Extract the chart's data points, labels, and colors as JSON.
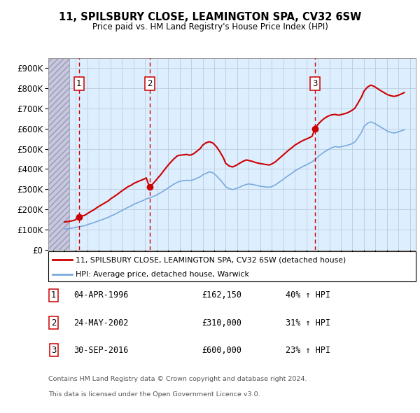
{
  "title": "11, SPILSBURY CLOSE, LEAMINGTON SPA, CV32 6SW",
  "subtitle": "Price paid vs. HM Land Registry's House Price Index (HPI)",
  "ylim": [
    0,
    950000
  ],
  "yticks": [
    0,
    100000,
    200000,
    300000,
    400000,
    500000,
    600000,
    700000,
    800000,
    900000
  ],
  "ytick_labels": [
    "£0",
    "£100K",
    "£200K",
    "£300K",
    "£400K",
    "£500K",
    "£600K",
    "£700K",
    "£800K",
    "£900K"
  ],
  "xlim_start": 1993.6,
  "xlim_end": 2025.5,
  "hatch_end_year": 1995.4,
  "sales": [
    {
      "year": 1996.25,
      "price": 162150,
      "label": "1"
    },
    {
      "year": 2002.39,
      "price": 310000,
      "label": "2"
    },
    {
      "year": 2016.75,
      "price": 600000,
      "label": "3"
    }
  ],
  "legend_line1": "11, SPILSBURY CLOSE, LEAMINGTON SPA, CV32 6SW (detached house)",
  "legend_line2": "HPI: Average price, detached house, Warwick",
  "table_rows": [
    {
      "num": "1",
      "date": "04-APR-1996",
      "price": "£162,150",
      "change": "40% ↑ HPI"
    },
    {
      "num": "2",
      "date": "24-MAY-2002",
      "price": "£310,000",
      "change": "31% ↑ HPI"
    },
    {
      "num": "3",
      "date": "30-SEP-2016",
      "price": "£600,000",
      "change": "23% ↑ HPI"
    }
  ],
  "footer1": "Contains HM Land Registry data © Crown copyright and database right 2024.",
  "footer2": "This data is licensed under the Open Government Licence v3.0.",
  "red_color": "#cc0000",
  "blue_color": "#7aaadd",
  "bg_color": "#ddeeff",
  "grid_color": "#bbccdd",
  "red_line_data_x": [
    1995.0,
    1995.3,
    1995.6,
    1995.9,
    1996.0,
    1996.25,
    1996.5,
    1996.8,
    1997.0,
    1997.3,
    1997.6,
    1997.9,
    1998.2,
    1998.5,
    1998.8,
    1999.0,
    1999.3,
    1999.6,
    1999.9,
    2000.2,
    2000.5,
    2000.8,
    2001.0,
    2001.3,
    2001.6,
    2001.9,
    2002.1,
    2002.39,
    2002.7,
    2003.0,
    2003.3,
    2003.6,
    2003.9,
    2004.2,
    2004.5,
    2004.8,
    2005.0,
    2005.3,
    2005.6,
    2005.9,
    2006.2,
    2006.5,
    2006.8,
    2007.0,
    2007.3,
    2007.6,
    2007.9,
    2008.2,
    2008.5,
    2008.8,
    2009.0,
    2009.3,
    2009.6,
    2009.9,
    2010.2,
    2010.5,
    2010.8,
    2011.0,
    2011.3,
    2011.6,
    2011.9,
    2012.2,
    2012.5,
    2012.8,
    2013.0,
    2013.3,
    2013.6,
    2013.9,
    2014.2,
    2014.5,
    2014.8,
    2015.0,
    2015.3,
    2015.6,
    2015.9,
    2016.2,
    2016.5,
    2016.75,
    2017.0,
    2017.3,
    2017.6,
    2017.9,
    2018.2,
    2018.5,
    2018.8,
    2019.0,
    2019.3,
    2019.6,
    2019.9,
    2020.2,
    2020.5,
    2020.8,
    2021.0,
    2021.3,
    2021.6,
    2021.9,
    2022.2,
    2022.5,
    2022.8,
    2023.0,
    2023.3,
    2023.6,
    2023.9,
    2024.2,
    2024.5
  ],
  "red_line_data_y": [
    138000,
    140000,
    143000,
    147000,
    152000,
    162150,
    167000,
    172000,
    180000,
    190000,
    200000,
    212000,
    222000,
    232000,
    242000,
    252000,
    263000,
    275000,
    288000,
    300000,
    312000,
    320000,
    328000,
    336000,
    343000,
    350000,
    356000,
    310000,
    328000,
    348000,
    368000,
    390000,
    412000,
    432000,
    450000,
    465000,
    468000,
    470000,
    472000,
    468000,
    475000,
    488000,
    502000,
    518000,
    530000,
    535000,
    528000,
    510000,
    485000,
    455000,
    428000,
    415000,
    410000,
    418000,
    428000,
    438000,
    445000,
    442000,
    438000,
    432000,
    428000,
    425000,
    422000,
    420000,
    425000,
    435000,
    450000,
    465000,
    480000,
    495000,
    508000,
    518000,
    528000,
    538000,
    546000,
    553000,
    562000,
    600000,
    620000,
    638000,
    652000,
    662000,
    668000,
    670000,
    666000,
    669000,
    673000,
    679000,
    688000,
    700000,
    728000,
    758000,
    785000,
    805000,
    815000,
    808000,
    797000,
    786000,
    776000,
    769000,
    763000,
    759000,
    763000,
    770000,
    778000
  ],
  "blue_line_data_x": [
    1995.0,
    1995.3,
    1995.6,
    1995.9,
    1996.0,
    1996.25,
    1996.5,
    1996.8,
    1997.0,
    1997.3,
    1997.6,
    1997.9,
    1998.2,
    1998.5,
    1998.8,
    1999.0,
    1999.3,
    1999.6,
    1999.9,
    2000.2,
    2000.5,
    2000.8,
    2001.0,
    2001.3,
    2001.6,
    2001.9,
    2002.1,
    2002.39,
    2002.7,
    2003.0,
    2003.3,
    2003.6,
    2003.9,
    2004.2,
    2004.5,
    2004.8,
    2005.0,
    2005.3,
    2005.6,
    2005.9,
    2006.2,
    2006.5,
    2006.8,
    2007.0,
    2007.3,
    2007.6,
    2007.9,
    2008.2,
    2008.5,
    2008.8,
    2009.0,
    2009.3,
    2009.6,
    2009.9,
    2010.2,
    2010.5,
    2010.8,
    2011.0,
    2011.3,
    2011.6,
    2011.9,
    2012.2,
    2012.5,
    2012.8,
    2013.0,
    2013.3,
    2013.6,
    2013.9,
    2014.2,
    2014.5,
    2014.8,
    2015.0,
    2015.3,
    2015.6,
    2015.9,
    2016.2,
    2016.5,
    2016.75,
    2017.0,
    2017.3,
    2017.6,
    2017.9,
    2018.2,
    2018.5,
    2018.8,
    2019.0,
    2019.3,
    2019.6,
    2019.9,
    2020.2,
    2020.5,
    2020.8,
    2021.0,
    2021.3,
    2021.6,
    2021.9,
    2022.2,
    2022.5,
    2022.8,
    2023.0,
    2023.3,
    2023.6,
    2023.9,
    2024.2,
    2024.5
  ],
  "blue_line_data_y": [
    103000,
    105000,
    107000,
    110000,
    112000,
    114000,
    117000,
    120000,
    125000,
    130000,
    136000,
    142000,
    148000,
    154000,
    161000,
    167000,
    174000,
    183000,
    192000,
    201000,
    210000,
    218000,
    225000,
    232000,
    239000,
    246000,
    252000,
    257000,
    264000,
    271000,
    281000,
    291000,
    302000,
    314000,
    325000,
    334000,
    339000,
    342000,
    344000,
    343000,
    347000,
    354000,
    362000,
    371000,
    379000,
    386000,
    381000,
    366000,
    348000,
    328000,
    312000,
    303000,
    298000,
    303000,
    310000,
    318000,
    324000,
    326000,
    324000,
    320000,
    316000,
    313000,
    311000,
    310000,
    313000,
    321000,
    333000,
    345000,
    358000,
    370000,
    381000,
    391000,
    400000,
    410000,
    418000,
    426000,
    436000,
    446000,
    460000,
    474000,
    486000,
    496000,
    505000,
    511000,
    508000,
    510000,
    514000,
    518000,
    524000,
    533000,
    556000,
    583000,
    610000,
    626000,
    633000,
    626000,
    616000,
    606000,
    596000,
    588000,
    582000,
    578000,
    582000,
    588000,
    594000
  ]
}
